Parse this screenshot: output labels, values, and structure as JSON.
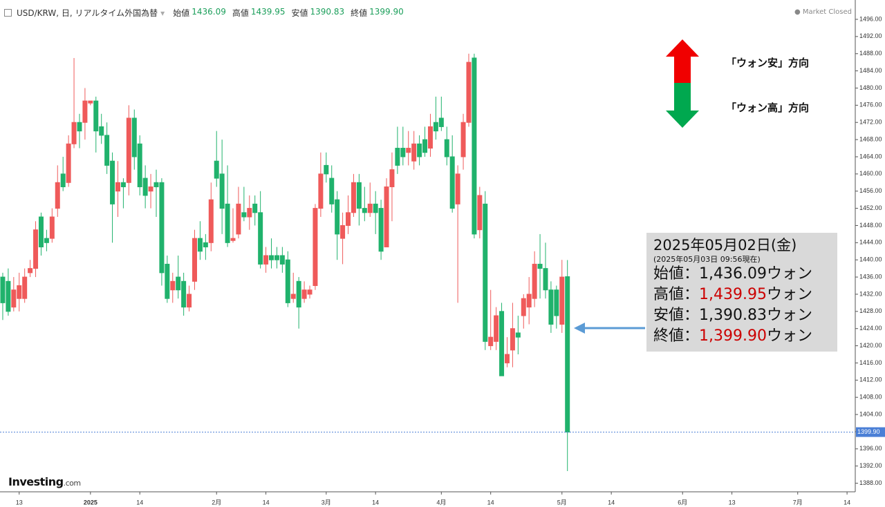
{
  "chart_data": {
    "type": "candlestick",
    "title": "USD/KRW, 日, リアルタイム外国為替",
    "status": "Market Closed",
    "source": {
      "name": "Investing",
      "suffix": ".com"
    },
    "header": {
      "labels": [
        "始値",
        "高値",
        "安値",
        "終値"
      ],
      "values": [
        "1436.09",
        "1439.95",
        "1390.83",
        "1399.90"
      ]
    },
    "categories": [
      null,
      null,
      null,
      "13",
      null,
      null,
      null,
      null,
      null,
      null,
      null,
      null,
      null,
      null,
      null,
      null,
      "2025",
      null,
      null,
      null,
      null,
      null,
      null,
      null,
      null,
      "14",
      null,
      null,
      null,
      null,
      null,
      null,
      null,
      null,
      null,
      null,
      null,
      null,
      null,
      "2月",
      null,
      null,
      null,
      null,
      null,
      null,
      null,
      null,
      "14",
      null,
      null,
      null,
      null,
      null,
      null,
      null,
      null,
      null,
      null,
      "3月",
      null,
      null,
      null,
      null,
      null,
      null,
      null,
      null,
      "14",
      null,
      null,
      null,
      null,
      null,
      null,
      null,
      null,
      null,
      null,
      null,
      "4月",
      null,
      null,
      null,
      null,
      null,
      null,
      null,
      null,
      "14",
      null,
      null,
      null,
      null,
      null,
      null,
      null,
      null,
      null,
      null,
      null,
      null,
      "5月",
      null,
      null,
      null,
      null,
      null,
      null,
      null,
      null,
      "14",
      null,
      null,
      null,
      null,
      null,
      null,
      null,
      null,
      null,
      null,
      null,
      null,
      "6月",
      null,
      null,
      null,
      null,
      null,
      null,
      null,
      null,
      "13",
      null,
      null,
      null,
      null,
      null,
      null,
      null,
      null,
      null,
      null,
      null,
      "7月",
      null,
      null,
      null,
      null,
      null,
      null,
      null,
      null,
      "14",
      null
    ],
    "open": [
      1436,
      1435,
      1429,
      1431,
      1431,
      1437,
      1438,
      1450,
      1445,
      1445,
      1452,
      1460,
      1458,
      1467,
      1472,
      1472,
      1476.5,
      1477,
      1471,
      1469,
      1463,
      1456,
      1458,
      1458,
      1473,
      1467,
      1459,
      1456,
      1458,
      1458,
      1439,
      1433,
      1436,
      1435,
      1429,
      1435,
      1445,
      1444,
      1444,
      1463,
      1460,
      1453,
      1444.5,
      1446,
      1451,
      1450,
      1453,
      1451,
      1439,
      1441,
      1441,
      1441,
      1440,
      1431,
      1435,
      1431,
      1432,
      1434,
      1452,
      1462,
      1459,
      1454,
      1445,
      1448,
      1451,
      1458,
      1452,
      1451,
      1453,
      1452,
      1443,
      1457,
      1466,
      1466,
      1465,
      1463,
      1467,
      1468,
      1466,
      1472,
      1473,
      1468,
      1464,
      1453,
      1464,
      1472,
      1487,
      1447,
      1453,
      1420,
      1421,
      1428,
      1416,
      1419,
      1423,
      1427,
      1429,
      1431,
      1439,
      1438,
      1433,
      1433,
      1425,
      1436.09,
      null,
      null,
      null,
      null,
      null,
      null,
      null,
      null,
      null,
      null,
      null,
      null,
      null,
      null,
      null,
      null,
      null,
      null,
      null,
      null,
      null,
      null,
      null,
      null,
      null,
      null,
      null,
      null,
      null,
      null,
      null,
      null,
      null,
      null,
      null,
      null,
      null,
      null,
      null,
      null,
      null,
      null,
      null,
      null,
      null,
      null,
      null,
      null,
      null,
      null,
      null,
      null
    ],
    "high": [
      1437,
      1438,
      1436,
      1437,
      1438,
      1440,
      1449,
      1451,
      1447,
      1452,
      1462,
      1464,
      1469,
      1487,
      1474,
      1480,
      1477,
      1478,
      1474,
      1472,
      1465,
      1463,
      1459,
      1476,
      1475,
      1469,
      1462,
      1460,
      1461,
      1459,
      1441,
      1437,
      1441,
      1437,
      1434,
      1447,
      1449,
      1446,
      1458,
      1470,
      1468,
      1462,
      1452,
      1457,
      1457,
      1455,
      1455,
      1456,
      1443,
      1445,
      1443,
      1443,
      1442,
      1437,
      1436,
      1435,
      1434,
      1453,
      1465,
      1465,
      1462,
      1456,
      1451,
      1455,
      1460,
      1460,
      1457,
      1458,
      1456,
      1454,
      1459,
      1465,
      1471,
      1471,
      1470,
      1470,
      1469,
      1471,
      1474,
      1478,
      1478,
      1471,
      1469,
      1462,
      1474,
      1488,
      1488,
      1457,
      1456,
      1433,
      1429,
      1430,
      1422,
      1430,
      1427,
      1432,
      1436,
      1442,
      1446,
      1444,
      1435,
      1434,
      1440,
      1439.95,
      null,
      null,
      null,
      null,
      null,
      null,
      null,
      null,
      null,
      null,
      null,
      null,
      null,
      null,
      null,
      null,
      null,
      null,
      null,
      null,
      null,
      null,
      null,
      null,
      null,
      null,
      null,
      null,
      null,
      null,
      null,
      null,
      null,
      null,
      null,
      null,
      null,
      null,
      null,
      null,
      null,
      null,
      null,
      null,
      null,
      null,
      null,
      null,
      null,
      null,
      null,
      null
    ],
    "low": [
      1426,
      1427,
      1428,
      1428,
      1430,
      1436,
      1436,
      1441,
      1442,
      1444,
      1450,
      1456,
      1457,
      1466,
      1466,
      1468,
      1476,
      1465,
      1467,
      1460,
      1444,
      1450,
      1452,
      1455,
      1461,
      1455,
      1452,
      1452,
      1450,
      1434,
      1430,
      1430,
      1431,
      1427,
      1428,
      1433,
      1440,
      1440,
      1442,
      1457,
      1446,
      1443,
      1444,
      1445,
      1449,
      1447,
      1448,
      1438,
      1437,
      1438,
      1438,
      1437,
      1429,
      1430,
      1424,
      1430,
      1431,
      1433,
      1450,
      1458,
      1451,
      1440,
      1439,
      1446,
      1450,
      1448,
      1449,
      1450,
      1446,
      1440,
      1443,
      1449,
      1460,
      1462,
      1462,
      1461,
      1462,
      1464,
      1464,
      1468,
      1470,
      1462,
      1451,
      1430,
      1461,
      1471,
      1445,
      1445,
      1419,
      1419,
      1419,
      1413,
      1415,
      1415,
      1418,
      1424,
      1425,
      1429,
      1431,
      1431,
      1423,
      1424,
      1423,
      1390.83,
      null,
      null,
      null,
      null,
      null,
      null,
      null,
      null,
      null,
      null,
      null,
      null,
      null,
      null,
      null,
      null,
      null,
      null,
      null,
      null,
      null,
      null,
      null,
      null,
      null,
      null,
      null,
      null,
      null,
      null,
      null,
      null,
      null,
      null,
      null,
      null,
      null,
      null,
      null,
      null,
      null,
      null,
      null,
      null,
      null,
      null,
      null,
      null,
      null,
      null,
      null,
      null
    ],
    "close": [
      1430,
      1428,
      1433,
      1434,
      1436,
      1438,
      1447,
      1443,
      1444,
      1450,
      1458,
      1457,
      1467,
      1472,
      1470,
      1477,
      1477,
      1470,
      1469,
      1462,
      1453,
      1458,
      1457,
      1473,
      1464,
      1457,
      1455,
      1457,
      1457,
      1437,
      1431,
      1435,
      1433,
      1429,
      1432,
      1445,
      1442,
      1443,
      1454,
      1459,
      1452,
      1444,
      1445,
      1453,
      1450,
      1452,
      1451,
      1439,
      1441,
      1440,
      1440,
      1439,
      1430,
      1432,
      1429,
      1433,
      1433,
      1452,
      1460,
      1460,
      1453,
      1446,
      1448,
      1451,
      1458,
      1452,
      1451,
      1453,
      1451,
      1442,
      1457,
      1461,
      1462,
      1464,
      1466,
      1467,
      1464,
      1465,
      1471,
      1470,
      1471,
      1464,
      1452,
      1460,
      1472,
      1486,
      1446,
      1455,
      1421,
      1422,
      1427,
      1413,
      1418,
      1424,
      1422,
      1431,
      1432,
      1439,
      1438,
      1433,
      1425,
      1427,
      1436,
      1399.9,
      null,
      null,
      null,
      null,
      null,
      null,
      null,
      null,
      null,
      null,
      null,
      null,
      null,
      null,
      null,
      null,
      null,
      null,
      null,
      null,
      null,
      null,
      null,
      null,
      null,
      null,
      null,
      null,
      null,
      null,
      null,
      null,
      null,
      null,
      null,
      null,
      null,
      null,
      null,
      null,
      null,
      null,
      null,
      null,
      null,
      null,
      null,
      null,
      null,
      null,
      null,
      null
    ],
    "up_color": "#ef5a5a",
    "down_color": "#20b26c",
    "ylim": [
      1386,
      1500.5
    ],
    "yticks": [
      {
        "value": 1388,
        "label": "1388.00"
      },
      {
        "value": 1392,
        "label": "1392.00"
      },
      {
        "value": 1396,
        "label": "1396.00"
      },
      {
        "value": 1400,
        "label": "1400.00"
      },
      {
        "value": 1404,
        "label": "1404.00"
      },
      {
        "value": 1408,
        "label": "1408.00"
      },
      {
        "value": 1412,
        "label": "1412.00"
      },
      {
        "value": 1416,
        "label": "1416.00"
      },
      {
        "value": 1420,
        "label": "1420.00"
      },
      {
        "value": 1424,
        "label": "1424.00"
      },
      {
        "value": 1428,
        "label": "1428.00"
      },
      {
        "value": 1432,
        "label": "1432.00"
      },
      {
        "value": 1436,
        "label": "1436.00"
      },
      {
        "value": 1440,
        "label": "1440.00"
      },
      {
        "value": 1444,
        "label": "1444.00"
      },
      {
        "value": 1448,
        "label": "1448.00"
      },
      {
        "value": 1452,
        "label": "1452.00"
      },
      {
        "value": 1456,
        "label": "1456.00"
      },
      {
        "value": 1460,
        "label": "1460.00"
      },
      {
        "value": 1464,
        "label": "1464.00"
      },
      {
        "value": 1468,
        "label": "1468.00"
      },
      {
        "value": 1472,
        "label": "1472.00"
      },
      {
        "value": 1476,
        "label": "1476.00"
      },
      {
        "value": 1480,
        "label": "1480.00"
      },
      {
        "value": 1484,
        "label": "1484.00"
      },
      {
        "value": 1488,
        "label": "1488.00"
      },
      {
        "value": 1492,
        "label": "1492.00"
      },
      {
        "value": 1496,
        "label": "1496.00"
      }
    ],
    "last_price": {
      "value": 1399.9,
      "label": "1399.90",
      "color": "#4a7fd6"
    },
    "legend": {
      "up": "「ウォン安」方向",
      "down": "「ウォン高」方向"
    },
    "annotation": {
      "date": "2025年05月02日(金)",
      "note": "(2025年05月03日 09:56現在)",
      "highlight_color": "#cc0000",
      "rows": [
        {
          "label": "始値",
          "sep": "：",
          "value": "1,436.09",
          "unit": "ウォン",
          "highlight": false
        },
        {
          "label": "高値",
          "sep": "：",
          "value": "1,439.95",
          "unit": "ウォン",
          "highlight": true
        },
        {
          "label": "安値",
          "sep": "：",
          "value": "1,390.83",
          "unit": "ウォン",
          "highlight": false
        },
        {
          "label": "終値",
          "sep": "：",
          "value": "1,399.90",
          "unit": "ウォン",
          "highlight": true
        }
      ]
    }
  }
}
